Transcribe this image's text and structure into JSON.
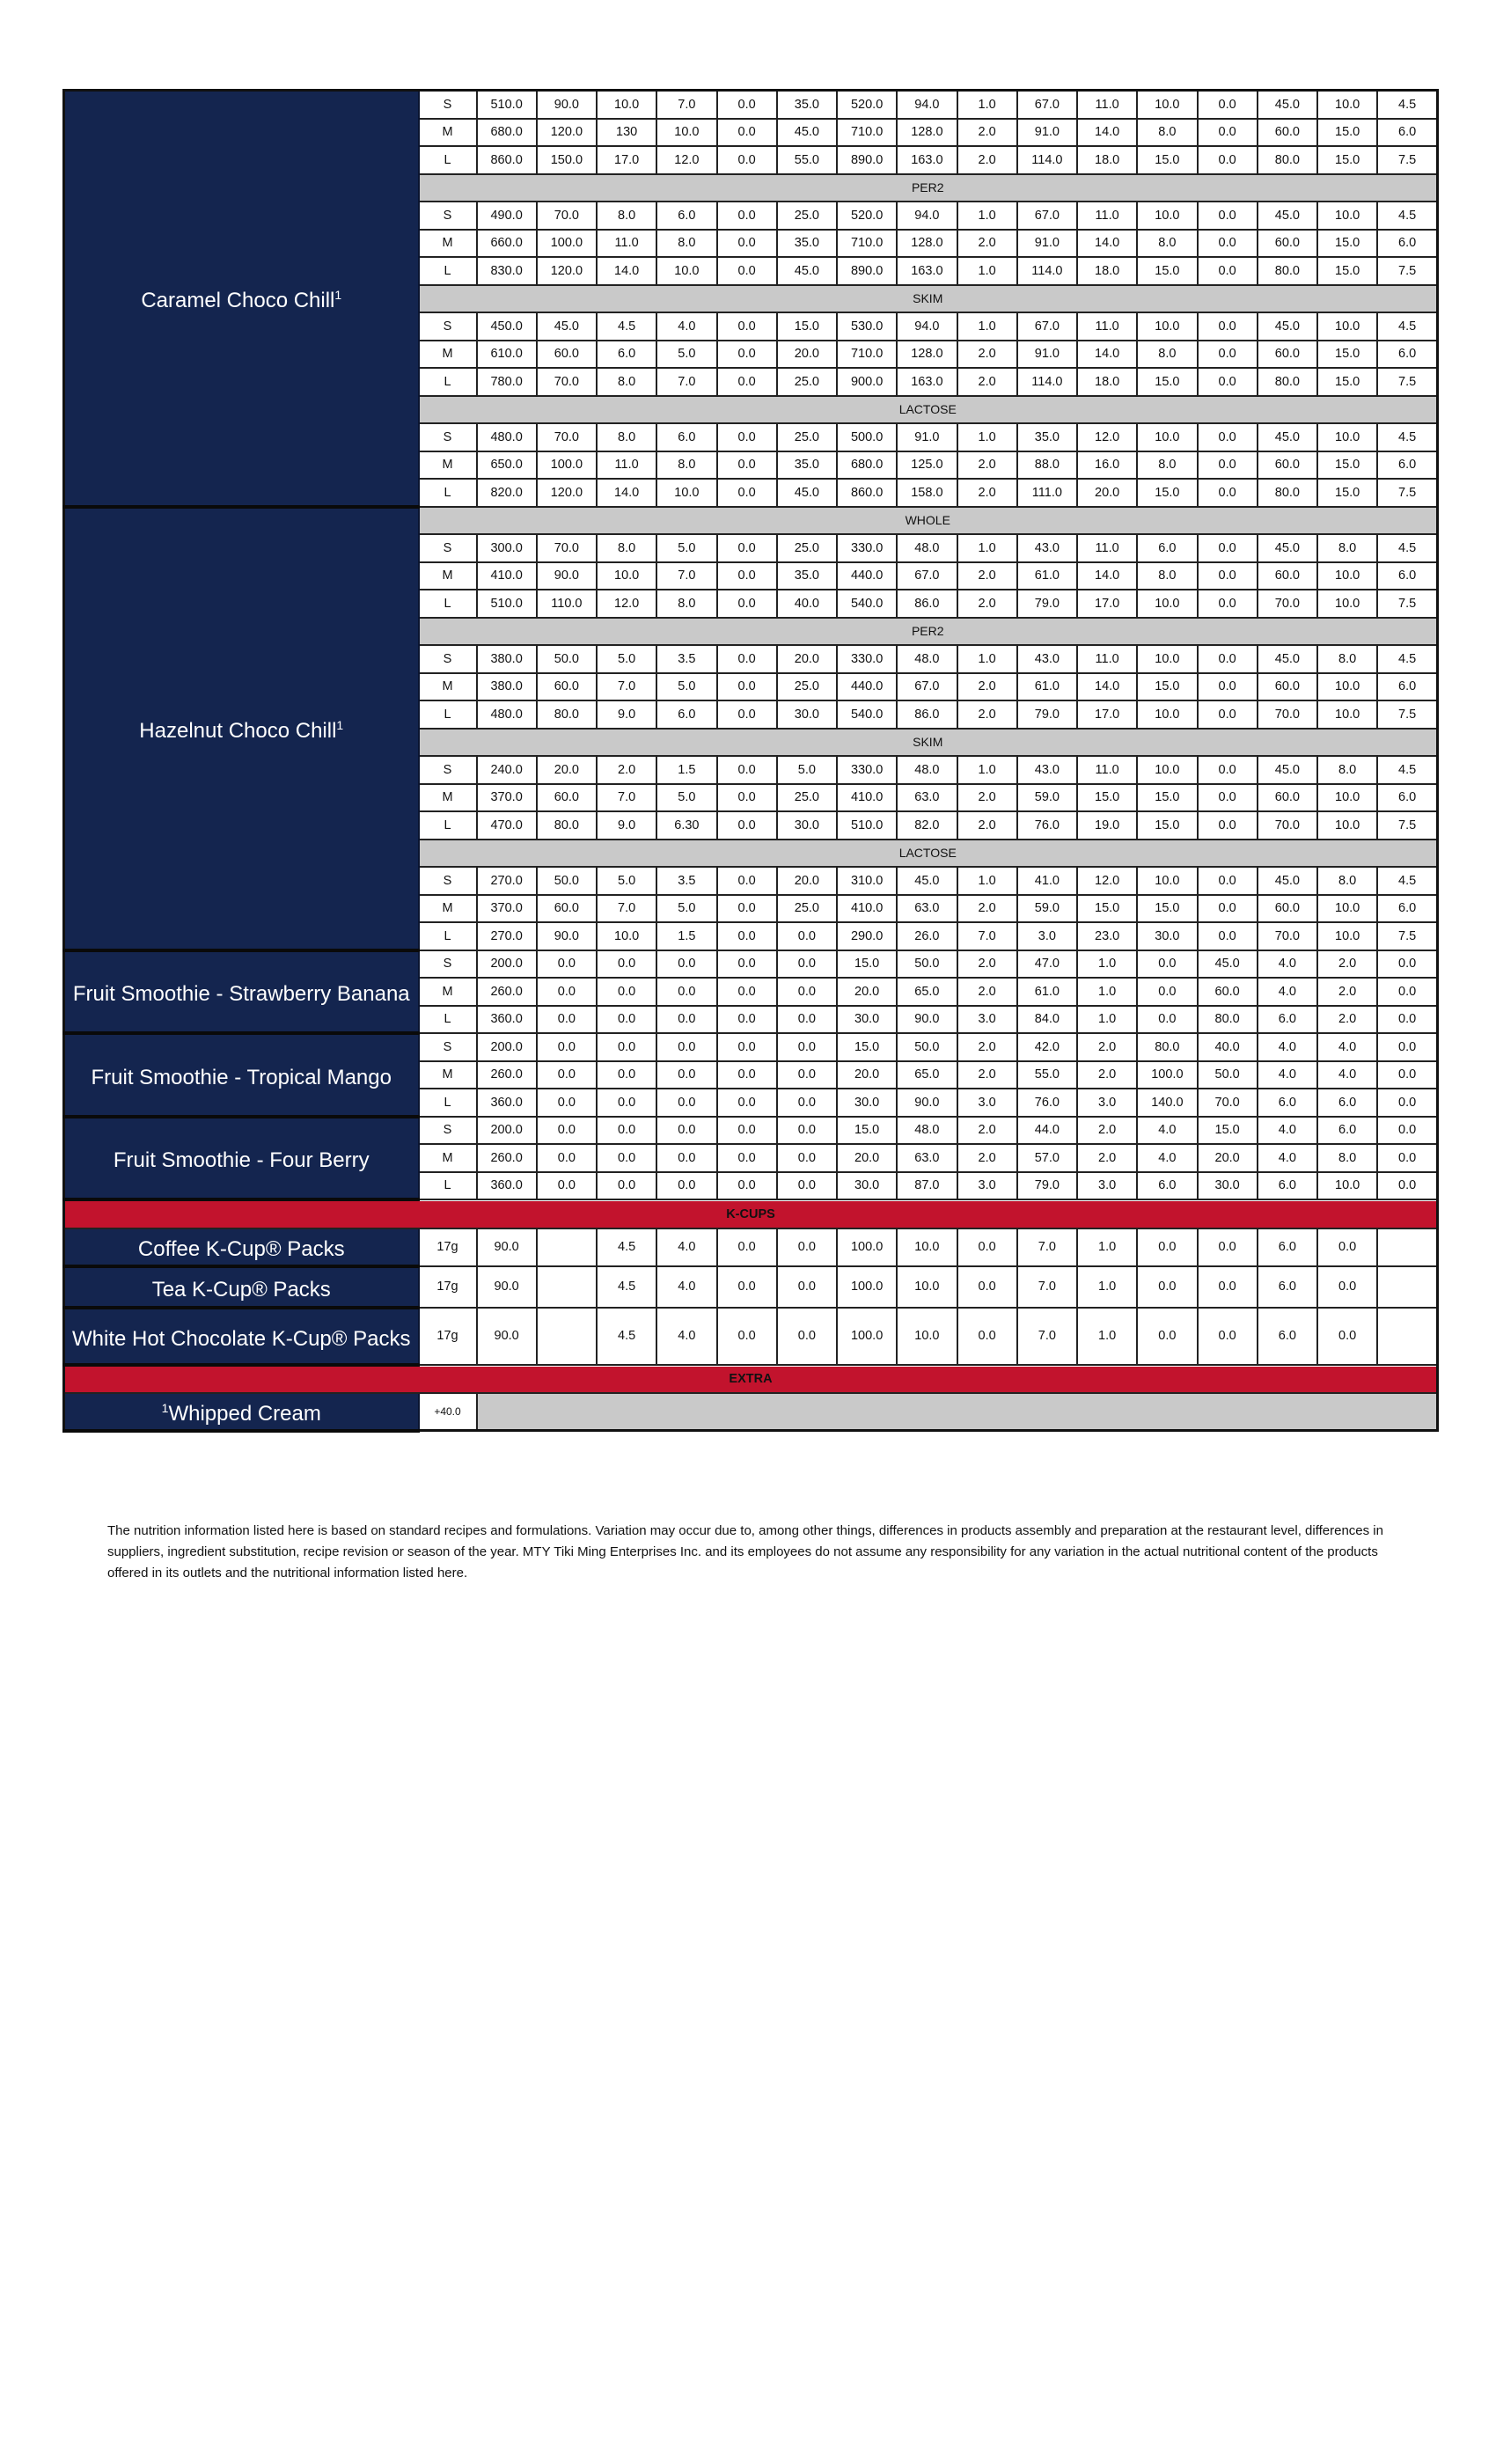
{
  "drinks": [
    {
      "name": "Caramel Choco Chill",
      "footnote_mark": "1",
      "sections": [
        {
          "label": "",
          "rows": [
            [
              "S",
              "510.0",
              "90.0",
              "10.0",
              "7.0",
              "0.0",
              "35.0",
              "520.0",
              "94.0",
              "1.0",
              "67.0",
              "11.0",
              "10.0",
              "0.0",
              "45.0",
              "10.0",
              "4.5"
            ],
            [
              "M",
              "680.0",
              "120.0",
              "130",
              "10.0",
              "0.0",
              "45.0",
              "710.0",
              "128.0",
              "2.0",
              "91.0",
              "14.0",
              "8.0",
              "0.0",
              "60.0",
              "15.0",
              "6.0"
            ],
            [
              "L",
              "860.0",
              "150.0",
              "17.0",
              "12.0",
              "0.0",
              "55.0",
              "890.0",
              "163.0",
              "2.0",
              "114.0",
              "18.0",
              "15.0",
              "0.0",
              "80.0",
              "15.0",
              "7.5"
            ]
          ]
        },
        {
          "label": "PER2",
          "rows": [
            [
              "S",
              "490.0",
              "70.0",
              "8.0",
              "6.0",
              "0.0",
              "25.0",
              "520.0",
              "94.0",
              "1.0",
              "67.0",
              "11.0",
              "10.0",
              "0.0",
              "45.0",
              "10.0",
              "4.5"
            ],
            [
              "M",
              "660.0",
              "100.0",
              "11.0",
              "8.0",
              "0.0",
              "35.0",
              "710.0",
              "128.0",
              "2.0",
              "91.0",
              "14.0",
              "8.0",
              "0.0",
              "60.0",
              "15.0",
              "6.0"
            ],
            [
              "L",
              "830.0",
              "120.0",
              "14.0",
              "10.0",
              "0.0",
              "45.0",
              "890.0",
              "163.0",
              "1.0",
              "114.0",
              "18.0",
              "15.0",
              "0.0",
              "80.0",
              "15.0",
              "7.5"
            ]
          ]
        },
        {
          "label": "SKIM",
          "rows": [
            [
              "S",
              "450.0",
              "45.0",
              "4.5",
              "4.0",
              "0.0",
              "15.0",
              "530.0",
              "94.0",
              "1.0",
              "67.0",
              "11.0",
              "10.0",
              "0.0",
              "45.0",
              "10.0",
              "4.5"
            ],
            [
              "M",
              "610.0",
              "60.0",
              "6.0",
              "5.0",
              "0.0",
              "20.0",
              "710.0",
              "128.0",
              "2.0",
              "91.0",
              "14.0",
              "8.0",
              "0.0",
              "60.0",
              "15.0",
              "6.0"
            ],
            [
              "L",
              "780.0",
              "70.0",
              "8.0",
              "7.0",
              "0.0",
              "25.0",
              "900.0",
              "163.0",
              "2.0",
              "114.0",
              "18.0",
              "15.0",
              "0.0",
              "80.0",
              "15.0",
              "7.5"
            ]
          ]
        },
        {
          "label": "LACTOSE",
          "rows": [
            [
              "S",
              "480.0",
              "70.0",
              "8.0",
              "6.0",
              "0.0",
              "25.0",
              "500.0",
              "91.0",
              "1.0",
              "35.0",
              "12.0",
              "10.0",
              "0.0",
              "45.0",
              "10.0",
              "4.5"
            ],
            [
              "M",
              "650.0",
              "100.0",
              "11.0",
              "8.0",
              "0.0",
              "35.0",
              "680.0",
              "125.0",
              "2.0",
              "88.0",
              "16.0",
              "8.0",
              "0.0",
              "60.0",
              "15.0",
              "6.0"
            ],
            [
              "L",
              "820.0",
              "120.0",
              "14.0",
              "10.0",
              "0.0",
              "45.0",
              "860.0",
              "158.0",
              "2.0",
              "111.0",
              "20.0",
              "15.0",
              "0.0",
              "80.0",
              "15.0",
              "7.5"
            ]
          ]
        }
      ]
    },
    {
      "name": "Hazelnut Choco Chill",
      "footnote_mark": "1",
      "sections": [
        {
          "label": "WHOLE",
          "rows": [
            [
              "S",
              "300.0",
              "70.0",
              "8.0",
              "5.0",
              "0.0",
              "25.0",
              "330.0",
              "48.0",
              "1.0",
              "43.0",
              "11.0",
              "6.0",
              "0.0",
              "45.0",
              "8.0",
              "4.5"
            ],
            [
              "M",
              "410.0",
              "90.0",
              "10.0",
              "7.0",
              "0.0",
              "35.0",
              "440.0",
              "67.0",
              "2.0",
              "61.0",
              "14.0",
              "8.0",
              "0.0",
              "60.0",
              "10.0",
              "6.0"
            ],
            [
              "L",
              "510.0",
              "110.0",
              "12.0",
              "8.0",
              "0.0",
              "40.0",
              "540.0",
              "86.0",
              "2.0",
              "79.0",
              "17.0",
              "10.0",
              "0.0",
              "70.0",
              "10.0",
              "7.5"
            ]
          ]
        },
        {
          "label": "PER2",
          "rows": [
            [
              "S",
              "380.0",
              "50.0",
              "5.0",
              "3.5",
              "0.0",
              "20.0",
              "330.0",
              "48.0",
              "1.0",
              "43.0",
              "11.0",
              "10.0",
              "0.0",
              "45.0",
              "8.0",
              "4.5"
            ],
            [
              "M",
              "380.0",
              "60.0",
              "7.0",
              "5.0",
              "0.0",
              "25.0",
              "440.0",
              "67.0",
              "2.0",
              "61.0",
              "14.0",
              "15.0",
              "0.0",
              "60.0",
              "10.0",
              "6.0"
            ],
            [
              "L",
              "480.0",
              "80.0",
              "9.0",
              "6.0",
              "0.0",
              "30.0",
              "540.0",
              "86.0",
              "2.0",
              "79.0",
              "17.0",
              "10.0",
              "0.0",
              "70.0",
              "10.0",
              "7.5"
            ]
          ]
        },
        {
          "label": "SKIM",
          "rows": [
            [
              "S",
              "240.0",
              "20.0",
              "2.0",
              "1.5",
              "0.0",
              "5.0",
              "330.0",
              "48.0",
              "1.0",
              "43.0",
              "11.0",
              "10.0",
              "0.0",
              "45.0",
              "8.0",
              "4.5"
            ],
            [
              "M",
              "370.0",
              "60.0",
              "7.0",
              "5.0",
              "0.0",
              "25.0",
              "410.0",
              "63.0",
              "2.0",
              "59.0",
              "15.0",
              "15.0",
              "0.0",
              "60.0",
              "10.0",
              "6.0"
            ],
            [
              "L",
              "470.0",
              "80.0",
              "9.0",
              "6.30",
              "0.0",
              "30.0",
              "510.0",
              "82.0",
              "2.0",
              "76.0",
              "19.0",
              "15.0",
              "0.0",
              "70.0",
              "10.0",
              "7.5"
            ]
          ]
        },
        {
          "label": "LACTOSE",
          "rows": [
            [
              "S",
              "270.0",
              "50.0",
              "5.0",
              "3.5",
              "0.0",
              "20.0",
              "310.0",
              "45.0",
              "1.0",
              "41.0",
              "12.0",
              "10.0",
              "0.0",
              "45.0",
              "8.0",
              "4.5"
            ],
            [
              "M",
              "370.0",
              "60.0",
              "7.0",
              "5.0",
              "0.0",
              "25.0",
              "410.0",
              "63.0",
              "2.0",
              "59.0",
              "15.0",
              "15.0",
              "0.0",
              "60.0",
              "10.0",
              "6.0"
            ],
            [
              "L",
              "270.0",
              "90.0",
              "10.0",
              "1.5",
              "0.0",
              "0.0",
              "290.0",
              "26.0",
              "7.0",
              "3.0",
              "23.0",
              "30.0",
              "0.0",
              "70.0",
              "10.0",
              "7.5"
            ]
          ]
        }
      ]
    },
    {
      "name": "Fruit Smoothie - Strawberry Banana",
      "footnote_mark": "",
      "sections": [
        {
          "label": "",
          "rows": [
            [
              "S",
              "200.0",
              "0.0",
              "0.0",
              "0.0",
              "0.0",
              "0.0",
              "15.0",
              "50.0",
              "2.0",
              "47.0",
              "1.0",
              "0.0",
              "45.0",
              "4.0",
              "2.0",
              "0.0"
            ],
            [
              "M",
              "260.0",
              "0.0",
              "0.0",
              "0.0",
              "0.0",
              "0.0",
              "20.0",
              "65.0",
              "2.0",
              "61.0",
              "1.0",
              "0.0",
              "60.0",
              "4.0",
              "2.0",
              "0.0"
            ],
            [
              "L",
              "360.0",
              "0.0",
              "0.0",
              "0.0",
              "0.0",
              "0.0",
              "30.0",
              "90.0",
              "3.0",
              "84.0",
              "1.0",
              "0.0",
              "80.0",
              "6.0",
              "2.0",
              "0.0"
            ]
          ]
        }
      ]
    },
    {
      "name": "Fruit Smoothie - Tropical Mango",
      "footnote_mark": "",
      "sections": [
        {
          "label": "",
          "rows": [
            [
              "S",
              "200.0",
              "0.0",
              "0.0",
              "0.0",
              "0.0",
              "0.0",
              "15.0",
              "50.0",
              "2.0",
              "42.0",
              "2.0",
              "80.0",
              "40.0",
              "4.0",
              "4.0",
              "0.0"
            ],
            [
              "M",
              "260.0",
              "0.0",
              "0.0",
              "0.0",
              "0.0",
              "0.0",
              "20.0",
              "65.0",
              "2.0",
              "55.0",
              "2.0",
              "100.0",
              "50.0",
              "4.0",
              "4.0",
              "0.0"
            ],
            [
              "L",
              "360.0",
              "0.0",
              "0.0",
              "0.0",
              "0.0",
              "0.0",
              "30.0",
              "90.0",
              "3.0",
              "76.0",
              "3.0",
              "140.0",
              "70.0",
              "6.0",
              "6.0",
              "0.0"
            ]
          ]
        }
      ]
    },
    {
      "name": "Fruit Smoothie - Four Berry",
      "footnote_mark": "",
      "sections": [
        {
          "label": "",
          "rows": [
            [
              "S",
              "200.0",
              "0.0",
              "0.0",
              "0.0",
              "0.0",
              "0.0",
              "15.0",
              "48.0",
              "2.0",
              "44.0",
              "2.0",
              "4.0",
              "15.0",
              "4.0",
              "6.0",
              "0.0"
            ],
            [
              "M",
              "260.0",
              "0.0",
              "0.0",
              "0.0",
              "0.0",
              "0.0",
              "20.0",
              "63.0",
              "2.0",
              "57.0",
              "2.0",
              "4.0",
              "20.0",
              "4.0",
              "8.0",
              "0.0"
            ],
            [
              "L",
              "360.0",
              "0.0",
              "0.0",
              "0.0",
              "0.0",
              "0.0",
              "30.0",
              "87.0",
              "3.0",
              "79.0",
              "3.0",
              "6.0",
              "30.0",
              "6.0",
              "10.0",
              "0.0"
            ]
          ]
        }
      ]
    }
  ],
  "kcups": {
    "heading": "K-CUPS",
    "items": [
      {
        "name": "Coffee K-Cup® Packs",
        "values": [
          "17g",
          "90.0",
          "",
          "4.5",
          "4.0",
          "0.0",
          "0.0",
          "100.0",
          "10.0",
          "0.0",
          "7.0",
          "1.0",
          "0.0",
          "0.0",
          "6.0",
          "0.0",
          ""
        ]
      },
      {
        "name": "Tea K-Cup® Packs",
        "values": [
          "17g",
          "90.0",
          "",
          "4.5",
          "4.0",
          "0.0",
          "0.0",
          "100.0",
          "10.0",
          "0.0",
          "7.0",
          "1.0",
          "0.0",
          "0.0",
          "6.0",
          "0.0",
          ""
        ]
      },
      {
        "name": "White Hot Chocolate K-Cup® Packs",
        "values": [
          "17g",
          "90.0",
          "",
          "4.5",
          "4.0",
          "0.0",
          "0.0",
          "100.0",
          "10.0",
          "0.0",
          "7.0",
          "1.0",
          "0.0",
          "0.0",
          "6.0",
          "0.0",
          ""
        ]
      }
    ]
  },
  "extra": {
    "heading": "EXTRA",
    "items": [
      {
        "footnote_mark": "1",
        "name": "Whipped Cream",
        "value": "+40.0"
      }
    ]
  },
  "disclaimer": "The nutrition information listed here is based on standard recipes and formulations. Variation may occur due to, among other things, differences in products assembly and preparation at the restaurant level, differences in suppliers, ingredient substitution, recipe revision or season of the year. MTY Tiki Ming Enterprises Inc. and its employees do not assume any responsibility for any variation in the actual nutritional content of the products offered in its outlets and the nutritional information listed here.",
  "colors": {
    "navy": "#14254f",
    "red": "#c2132d",
    "subheader_gray": "#c9c9c9"
  }
}
